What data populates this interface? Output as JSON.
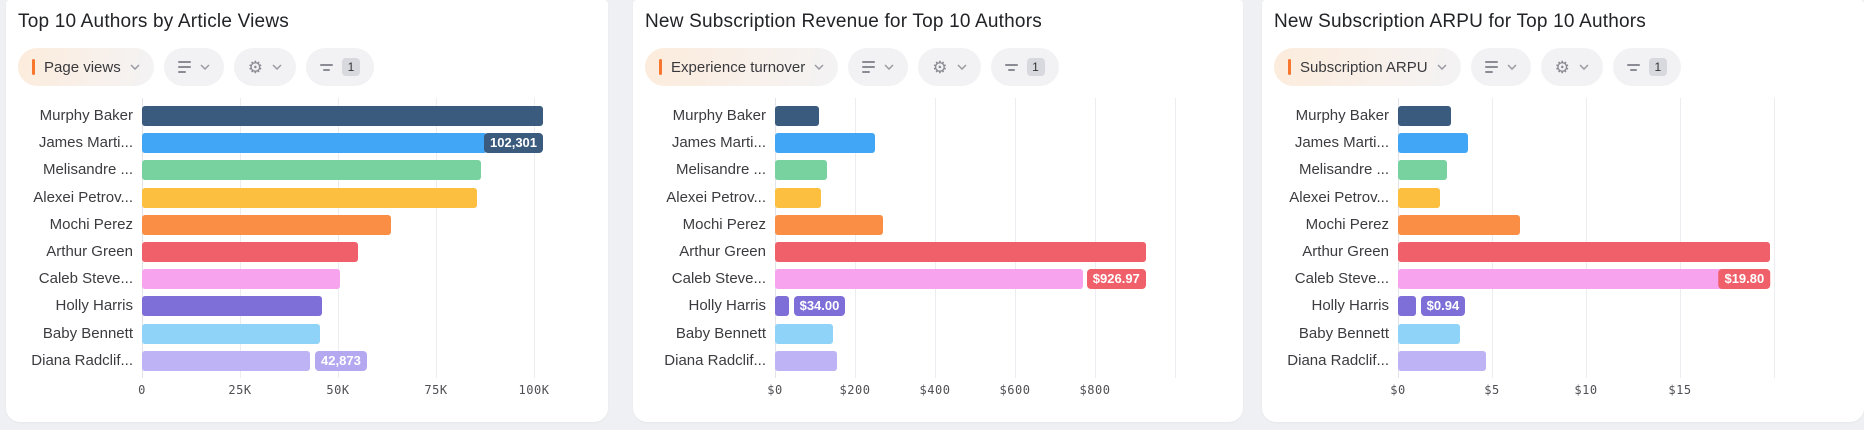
{
  "filter_count": "1",
  "palette": {
    "background": "#eef0f3",
    "card": "#ffffff",
    "accent_orange": "#f7772f",
    "gridline": "#ededf1",
    "bar_colors": [
      "#3a5a7e",
      "#41a6f5",
      "#77d2a0",
      "#fcbf3f",
      "#fa8e44",
      "#f0606a",
      "#f8a3ee",
      "#7e6fd8",
      "#8fd4f8",
      "#bdb3f5"
    ]
  },
  "toolbar": {
    "sort_control": "sort-options",
    "settings_control": "settings-options",
    "filter_control": "filters"
  },
  "chart_data": [
    {
      "type": "bar",
      "orientation": "horizontal",
      "title": "Top 10 Authors by Article Views",
      "metric_label": "Page views",
      "categories": [
        "Murphy Baker",
        "James Marti...",
        "Melisandre ...",
        "Alexei Petrov...",
        "Mochi Perez",
        "Arthur Green",
        "Caleb Steve...",
        "Holly Harris",
        "Baby Bennett",
        "Diana Radclif..."
      ],
      "values": [
        102301,
        88000,
        86500,
        85500,
        63500,
        55000,
        50500,
        45800,
        45300,
        42873
      ],
      "colors": [
        "#3a5a7e",
        "#41a6f5",
        "#77d2a0",
        "#fcbf3f",
        "#fa8e44",
        "#f0606a",
        "#f8a3ee",
        "#7e6fd8",
        "#8fd4f8",
        "#bdb3f5"
      ],
      "ticks": [
        {
          "value": 0,
          "label": "0"
        },
        {
          "value": 25000,
          "label": "25K"
        },
        {
          "value": 50000,
          "label": "50K"
        },
        {
          "value": 75000,
          "label": "75K"
        },
        {
          "value": 100000,
          "label": "100K"
        }
      ],
      "xlim": [
        0,
        116000
      ],
      "badges": [
        {
          "row": 0,
          "text": "102,301",
          "placement": "below",
          "color": "#3a5a7e"
        },
        {
          "row": 9,
          "text": "42,873",
          "placement": "right",
          "color": "#b4a9f0"
        }
      ]
    },
    {
      "type": "bar",
      "orientation": "horizontal",
      "title": "New Subscription Revenue for Top 10 Authors",
      "metric_label": "Experience turnover",
      "categories": [
        "Murphy Baker",
        "James Marti...",
        "Melisandre ...",
        "Alexei Petrov...",
        "Mochi Perez",
        "Arthur Green",
        "Caleb Steve...",
        "Holly Harris",
        "Baby Bennett",
        "Diana Radclif..."
      ],
      "values": [
        110,
        250,
        130,
        115,
        270,
        926.97,
        770,
        34,
        145,
        155
      ],
      "colors": [
        "#3a5a7e",
        "#41a6f5",
        "#77d2a0",
        "#fcbf3f",
        "#fa8e44",
        "#f0606a",
        "#f8a3ee",
        "#7e6fd8",
        "#8fd4f8",
        "#bdb3f5"
      ],
      "ticks": [
        {
          "value": 0,
          "label": "$0"
        },
        {
          "value": 200,
          "label": "$200"
        },
        {
          "value": 400,
          "label": "$400"
        },
        {
          "value": 600,
          "label": "$600"
        },
        {
          "value": 800,
          "label": "$800"
        },
        {
          "value": 1000,
          "label": ""
        }
      ],
      "xlim": [
        0,
        1150
      ],
      "badges": [
        {
          "row": 5,
          "text": "$926.97",
          "placement": "below",
          "color": "#f0606a"
        },
        {
          "row": 7,
          "text": "$34.00",
          "placement": "right",
          "color": "#7e6fd8"
        }
      ]
    },
    {
      "type": "bar",
      "orientation": "horizontal",
      "title": "New Subscription ARPU for Top 10 Authors",
      "metric_label": "Subscription ARPU",
      "categories": [
        "Murphy Baker",
        "James Marti...",
        "Melisandre ...",
        "Alexei Petrov...",
        "Mochi Perez",
        "Arthur Green",
        "Caleb Steve...",
        "Holly Harris",
        "Baby Bennett",
        "Diana Radclif..."
      ],
      "values": [
        2.8,
        3.7,
        2.6,
        2.25,
        6.5,
        19.8,
        19.5,
        0.94,
        3.3,
        4.7
      ],
      "colors": [
        "#3a5a7e",
        "#41a6f5",
        "#77d2a0",
        "#fcbf3f",
        "#fa8e44",
        "#f0606a",
        "#f8a3ee",
        "#7e6fd8",
        "#8fd4f8",
        "#bdb3f5"
      ],
      "ticks": [
        {
          "value": 0,
          "label": "$0"
        },
        {
          "value": 5,
          "label": "$5"
        },
        {
          "value": 10,
          "label": "$10"
        },
        {
          "value": 15,
          "label": "$15"
        },
        {
          "value": 20,
          "label": ""
        }
      ],
      "xlim": [
        0,
        24
      ],
      "badges": [
        {
          "row": 5,
          "text": "$19.80",
          "placement": "below",
          "color": "#f0606a"
        },
        {
          "row": 7,
          "text": "$0.94",
          "placement": "right",
          "color": "#7e6fd8"
        }
      ]
    }
  ]
}
